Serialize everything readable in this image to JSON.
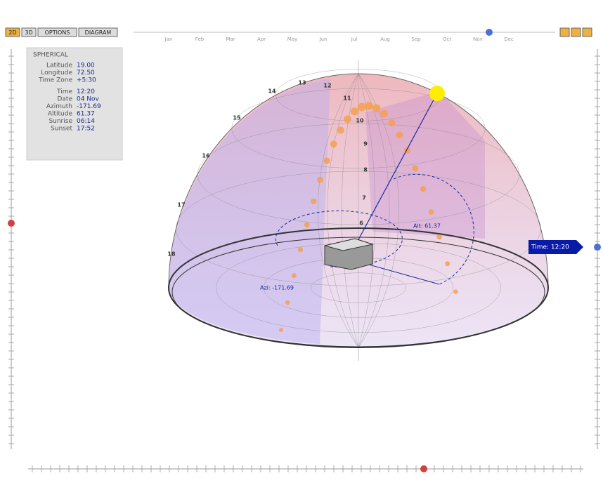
{
  "toolbar": {
    "buttons": [
      "2D",
      "3D",
      "OPTIONS",
      "DIAGRAM"
    ],
    "months": [
      "Jan",
      "Feb",
      "Mar",
      "Apr",
      "May",
      "Jun",
      "Jul",
      "Aug",
      "Sep",
      "Oct",
      "Nov",
      "Dec"
    ]
  },
  "info_panel": {
    "title": "SPHERICAL",
    "rows": [
      {
        "label": "Latitude",
        "value": "19.00"
      },
      {
        "label": "Longitude",
        "value": "72.50"
      },
      {
        "label": "Time Zone",
        "value": "+5:30"
      },
      {
        "label": "Time",
        "value": "12:20"
      },
      {
        "label": "Date",
        "value": "04 Nov"
      },
      {
        "label": "Azimuth",
        "value": "-171.69"
      },
      {
        "label": "Altitude",
        "value": "61.37"
      },
      {
        "label": "Sunrise",
        "value": "06:14"
      },
      {
        "label": "Sunset",
        "value": "17:52"
      }
    ]
  },
  "diagram": {
    "hour_labels": [
      "18",
      "17",
      "16",
      "15",
      "14",
      "13",
      "12",
      "11",
      "10",
      "9",
      "8",
      "7",
      "6"
    ],
    "altitude_label": "Alt: 61.37",
    "azimuth_label": "Azi: -171.69",
    "time_tag": "Time: 12:20"
  }
}
